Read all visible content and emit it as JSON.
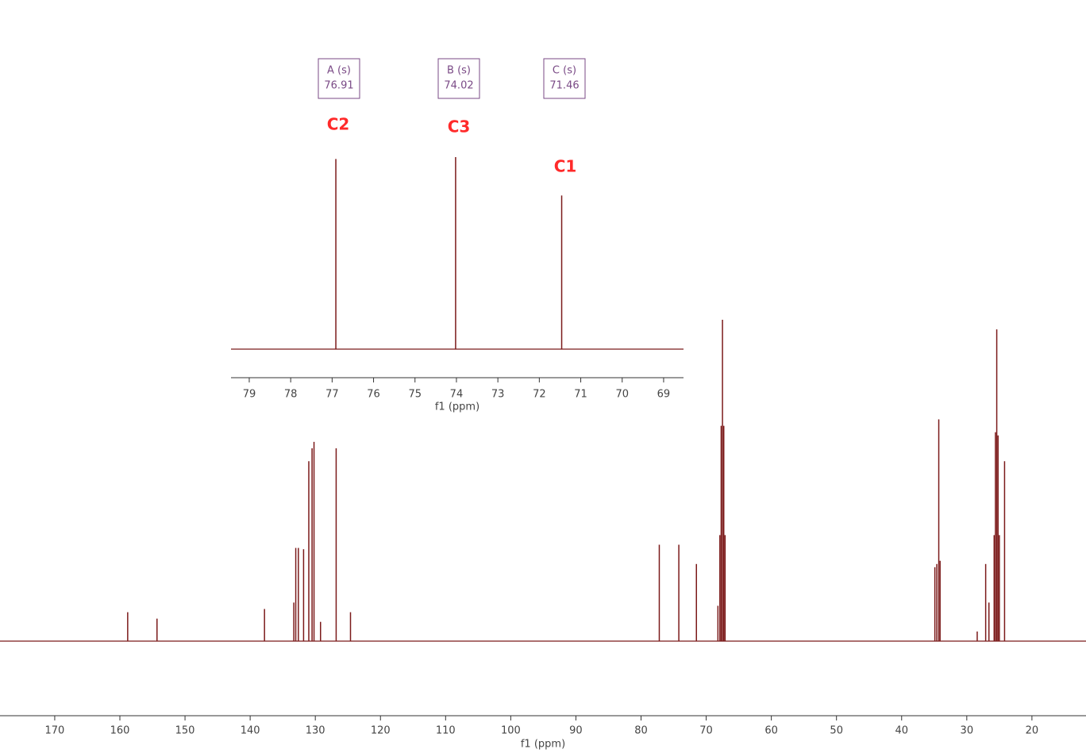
{
  "chart_data": [
    {
      "type": "peaks",
      "xlabel": "f1 (ppm)",
      "color": "#7b1a1a",
      "x": [
        158.8,
        154.3,
        137.8,
        133.3,
        133.0,
        132.6,
        131.8,
        131.0,
        130.5,
        130.2,
        129.2,
        126.8,
        124.6,
        77.2,
        74.2,
        71.5,
        68.2,
        67.9,
        67.7,
        67.5,
        67.3,
        67.1,
        34.9,
        34.6,
        34.3,
        34.1,
        28.4,
        27.1,
        26.6,
        25.8,
        25.6,
        25.4,
        25.2,
        25.0,
        24.2
      ],
      "values": [
        9,
        7,
        10,
        12,
        29,
        29,
        28.6,
        56,
        60,
        62,
        6,
        60,
        9,
        30,
        30,
        24,
        11,
        33,
        67,
        100,
        67,
        33,
        23,
        24,
        69,
        25,
        3,
        24,
        12,
        33,
        65,
        97,
        64,
        33,
        56
      ],
      "xlim": [
        178.4,
        11.7
      ],
      "ylim": [
        0,
        100
      ],
      "xticks": [
        170,
        160,
        150,
        140,
        130,
        120,
        110,
        100,
        90,
        80,
        70,
        60,
        50,
        40,
        30,
        20
      ]
    },
    {
      "type": "peaks",
      "xlabel": "f1 (ppm)",
      "color": "#7b1a1a",
      "x": [
        76.91,
        74.02,
        71.46
      ],
      "values": [
        99,
        100,
        80
      ],
      "peak_labels": [
        "C2",
        "C3",
        "C1"
      ],
      "peak_boxes": [
        {
          "name": "A (s)",
          "value": 76.91
        },
        {
          "name": "B (s)",
          "value": 74.02
        },
        {
          "name": "C (s)",
          "value": 71.46
        }
      ],
      "xlim": [
        79.44,
        68.52
      ],
      "ylim": [
        0,
        100
      ],
      "xticks": [
        79,
        78,
        77,
        76,
        75,
        74,
        73,
        72,
        71,
        70,
        69
      ]
    }
  ]
}
